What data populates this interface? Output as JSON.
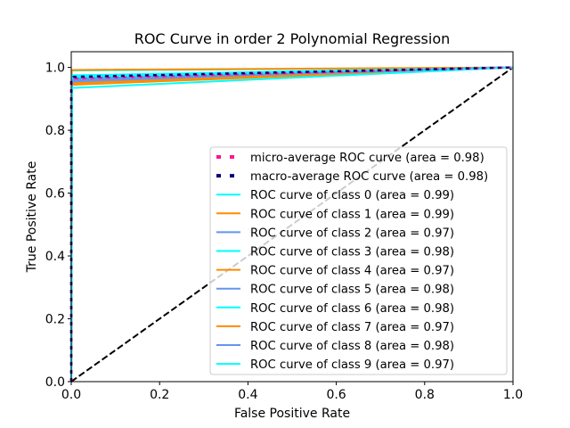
{
  "chart_data": {
    "type": "line",
    "title": "ROC Curve in order 2 Polynomial Regression",
    "xlabel": "False Positive Rate",
    "ylabel": "True Positive Rate",
    "xlim": [
      0.0,
      1.0
    ],
    "ylim": [
      0.0,
      1.05
    ],
    "xticks": [
      "0.0",
      "0.2",
      "0.4",
      "0.6",
      "0.8",
      "1.0"
    ],
    "yticks": [
      "0.0",
      "0.2",
      "0.4",
      "0.6",
      "0.8",
      "1.0"
    ],
    "grid": false,
    "legend_position": "lower-right",
    "series": [
      {
        "name": "micro-average ROC curve (area = 0.98)",
        "color": "#ff1493",
        "style": "dotted",
        "x": [
          0.0,
          0.0,
          0.005,
          1.0
        ],
        "y": [
          0.0,
          0.955,
          0.965,
          1.0
        ]
      },
      {
        "name": "macro-average ROC curve (area = 0.98)",
        "color": "#000080",
        "style": "dotted",
        "x": [
          0.0,
          0.0,
          0.005,
          1.0
        ],
        "y": [
          0.0,
          0.96,
          0.97,
          1.0
        ]
      },
      {
        "name": "ROC curve of class 0 (area = 0.99)",
        "color": "#00ffff",
        "style": "solid",
        "x": [
          0.0,
          0.001,
          0.004,
          1.0
        ],
        "y": [
          0.0,
          0.99,
          0.99,
          1.0
        ]
      },
      {
        "name": "ROC curve of class 1 (area = 0.99)",
        "color": "#ff8c00",
        "style": "solid",
        "x": [
          0.0,
          0.001,
          0.004,
          1.0
        ],
        "y": [
          0.0,
          0.992,
          0.992,
          1.0
        ]
      },
      {
        "name": "ROC curve of class 2 (area = 0.97)",
        "color": "#6495ed",
        "style": "solid",
        "x": [
          0.0,
          0.002,
          0.01,
          1.0
        ],
        "y": [
          0.0,
          0.955,
          0.955,
          1.0
        ]
      },
      {
        "name": "ROC curve of class 3 (area = 0.98)",
        "color": "#00ffff",
        "style": "solid",
        "x": [
          0.0,
          0.002,
          0.008,
          1.0
        ],
        "y": [
          0.0,
          0.975,
          0.975,
          1.0
        ]
      },
      {
        "name": "ROC curve of class 4 (area = 0.97)",
        "color": "#ff8c00",
        "style": "solid",
        "x": [
          0.0,
          0.002,
          0.008,
          1.0
        ],
        "y": [
          0.0,
          0.95,
          0.95,
          1.0
        ]
      },
      {
        "name": "ROC curve of class 5 (area = 0.98)",
        "color": "#6495ed",
        "style": "solid",
        "x": [
          0.0,
          0.002,
          0.008,
          1.0
        ],
        "y": [
          0.0,
          0.965,
          0.965,
          1.0
        ]
      },
      {
        "name": "ROC curve of class 6 (area = 0.98)",
        "color": "#00ffff",
        "style": "solid",
        "x": [
          0.0,
          0.002,
          0.008,
          1.0
        ],
        "y": [
          0.0,
          0.97,
          0.97,
          1.0
        ]
      },
      {
        "name": "ROC curve of class 7 (area = 0.97)",
        "color": "#ff8c00",
        "style": "solid",
        "x": [
          0.0,
          0.002,
          0.008,
          1.0
        ],
        "y": [
          0.0,
          0.945,
          0.945,
          1.0
        ]
      },
      {
        "name": "ROC curve of class 8 (area = 0.98)",
        "color": "#6495ed",
        "style": "solid",
        "x": [
          0.0,
          0.002,
          0.008,
          1.0
        ],
        "y": [
          0.0,
          0.96,
          0.96,
          1.0
        ]
      },
      {
        "name": "ROC curve of class 9 (area = 0.97)",
        "color": "#00ffff",
        "style": "solid",
        "x": [
          0.0,
          0.002,
          0.01,
          1.0
        ],
        "y": [
          0.0,
          0.935,
          0.935,
          1.0
        ]
      }
    ],
    "reference_line": {
      "color": "#000000",
      "style": "dashed",
      "x": [
        0.0,
        1.0
      ],
      "y": [
        0.0,
        1.0
      ]
    }
  }
}
